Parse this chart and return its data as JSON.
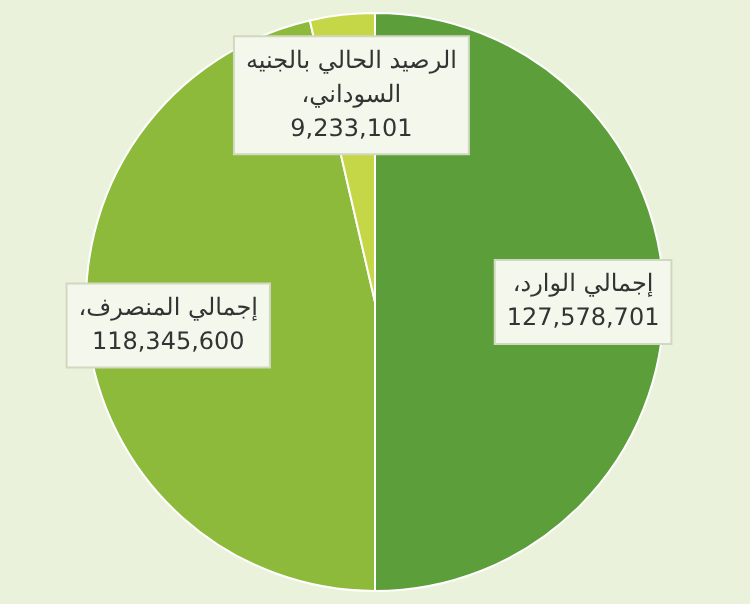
{
  "chart_data": {
    "type": "pie",
    "categories": [
      "إجمالي الوارد،",
      "إجمالي المنصرف،",
      "الرصيد الحالي بالجنيه السوداني،"
    ],
    "values": [
      127578701,
      118345600,
      9233101
    ],
    "value_labels": [
      "127,578,701",
      "118,345,600",
      "9,233,101"
    ],
    "colors": [
      "#5b9e3a",
      "#8dba3a",
      "#c5d646"
    ],
    "legend": false
  }
}
